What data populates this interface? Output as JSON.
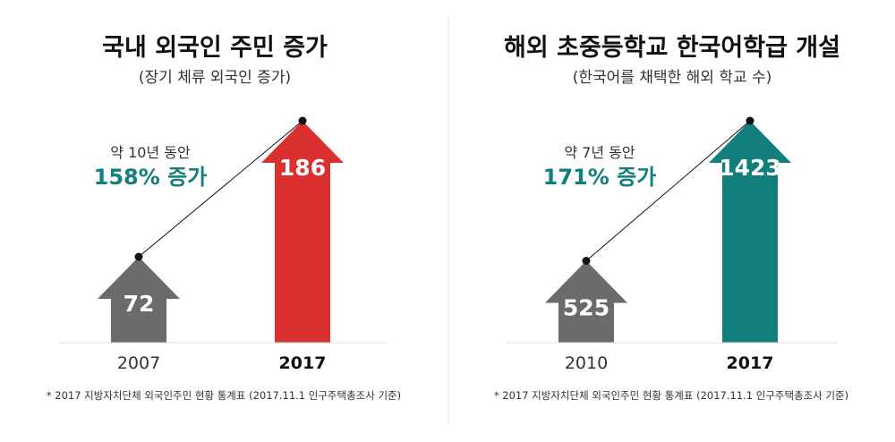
{
  "chart_data": [
    {
      "type": "bar",
      "title": "국내 외국인 주민 증가",
      "subtitle": "(장기 체류 외국인 증가)",
      "categories": [
        "2007",
        "2017"
      ],
      "values": [
        72,
        186
      ],
      "growth": {
        "label": "약 10년 동안",
        "value": "158% 증가"
      },
      "footnote": "* 2017 지방자치단체 외국인주민 현황 통계표 (2017.11.1 인구주택총조사 기준)",
      "colors": [
        "#6b6b6b",
        "#db3030"
      ]
    },
    {
      "type": "bar",
      "title": "해외 초중등학교 한국어학급 개설",
      "subtitle": "(한국어를 채택한 해외 학교 수)",
      "categories": [
        "2010",
        "2017"
      ],
      "values": [
        525,
        1423
      ],
      "growth": {
        "label": "약 7년 동안",
        "value": "171% 증가"
      },
      "footnote": "* 2017 지방자치단체 외국인주민 현황 통계표 (2017.11.1 인구주택총조사 기준)",
      "colors": [
        "#6b6b6b",
        "#127f7c"
      ]
    }
  ]
}
